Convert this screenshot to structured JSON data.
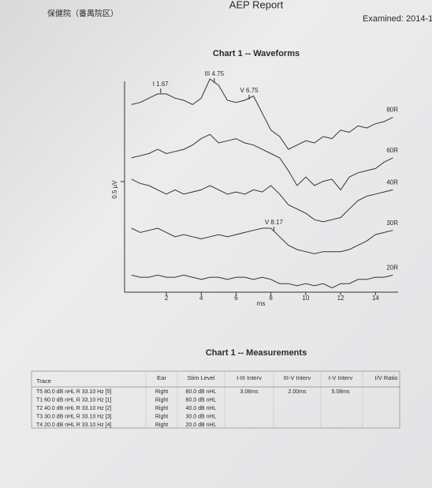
{
  "header": {
    "hospital": "保健院（番禺院区）",
    "title": "AEP Report",
    "examined": "Examined: 2014-1"
  },
  "chart_data": {
    "type": "line",
    "title": "Chart 1 -- Waveforms",
    "x_label": "ms",
    "scale_label": "0.5 µV",
    "x": [
      0,
      0.5,
      1,
      1.5,
      2,
      2.5,
      3,
      3.5,
      4,
      4.5,
      5,
      5.5,
      6,
      6.5,
      7,
      7.5,
      8,
      8.5,
      9,
      9.5,
      10,
      10.5,
      11,
      11.5,
      12,
      12.5,
      13,
      13.5,
      14,
      14.5,
      15
    ],
    "xlim": [
      -0.4,
      15.3
    ],
    "xticks": [
      2,
      4,
      6,
      8,
      10,
      12,
      14
    ],
    "ylim": [
      0,
      100
    ],
    "series": [
      {
        "name": "80R",
        "color": "#333333",
        "values": [
          88,
          89,
          91,
          93,
          93,
          91,
          90,
          88,
          91,
          100,
          97,
          90,
          89,
          90,
          92,
          84,
          76,
          73,
          67,
          69,
          71,
          70,
          73,
          72,
          76,
          75,
          78,
          77,
          79,
          80,
          82
        ]
      },
      {
        "name": "60R",
        "color": "#333333",
        "values": [
          63,
          64,
          65,
          67,
          65,
          66,
          67,
          69,
          72,
          74,
          70,
          71,
          72,
          70,
          69,
          67,
          65,
          63,
          57,
          50,
          54,
          50,
          52,
          53,
          48,
          54,
          56,
          57,
          58,
          61,
          63
        ]
      },
      {
        "name": "40R",
        "color": "#333333",
        "values": [
          53,
          51,
          50,
          48,
          46,
          48,
          46,
          47,
          48,
          50,
          48,
          46,
          47,
          46,
          48,
          47,
          50,
          46,
          41,
          39,
          37,
          34,
          33,
          34,
          35,
          39,
          43,
          45,
          46,
          47,
          48
        ]
      },
      {
        "name": "30R",
        "color": "#333333",
        "values": [
          30,
          28,
          29,
          30,
          28,
          26,
          27,
          26,
          25,
          26,
          27,
          26,
          27,
          28,
          29,
          30,
          30,
          26,
          22,
          20,
          19,
          18,
          19,
          19,
          19,
          20,
          22,
          24,
          27,
          28,
          29
        ]
      },
      {
        "name": "20R",
        "color": "#333333",
        "values": [
          8,
          7,
          7,
          8,
          7,
          7,
          8,
          7,
          6,
          7,
          7,
          6,
          7,
          7,
          6,
          7,
          6,
          4,
          4,
          3,
          4,
          3,
          4,
          2,
          4,
          4,
          6,
          6,
          7,
          7,
          8
        ]
      }
    ],
    "annotations": [
      {
        "text": "I 1.67",
        "x": 1.67
      },
      {
        "text": "III 4.75",
        "x": 4.75
      },
      {
        "text": "V 6.75",
        "x": 6.75
      },
      {
        "text": "V 8.17",
        "x": 8.17
      }
    ]
  },
  "measurements": {
    "title": "Chart 1 -- Measurements",
    "columns": [
      "Trace",
      "Ear",
      "Stim Level",
      "I-III Interv",
      "III-V Interv",
      "I-V Interv",
      "I/V Ratio"
    ],
    "rows": [
      [
        "T5  80.0 dB nHL  R  33.10 Hz  [5]",
        "Right",
        "80.0 dB nHL",
        "3.08ms",
        "2.00ms",
        "5.08ms"
      ],
      [
        "T1  60.0 dB nHL  R  33.10 Hz  [1]",
        "Right",
        "60.0 dB nHL"
      ],
      [
        "T2  40.0 dB nHL  R  33.10 Hz  [2]",
        "Right",
        "40.0 dB nHL"
      ],
      [
        "T3  30.0 dB nHL  R  33.10 Hz  [3]",
        "Right",
        "30.0 dB nHL"
      ],
      [
        "T4  20.0 dB nHL  R  33.10 Hz  [4]",
        "Right",
        "20.0 dB nHL"
      ]
    ]
  }
}
